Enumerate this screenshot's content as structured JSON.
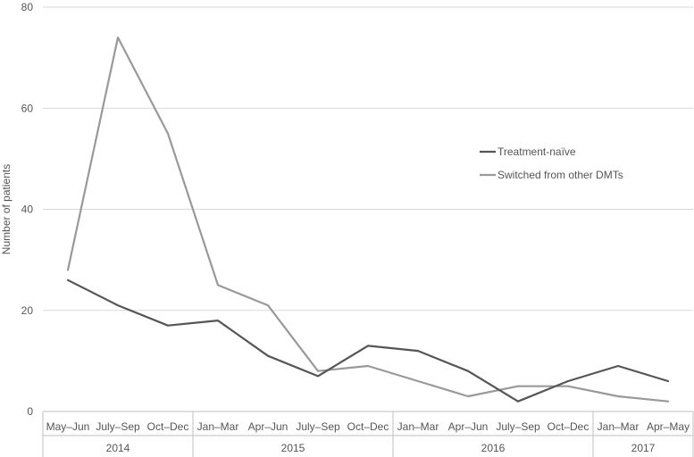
{
  "chart_data": {
    "type": "line",
    "ylabel": "Number of patients",
    "ylim": [
      0,
      80
    ],
    "yticks": [
      "0",
      "20",
      "40",
      "60",
      "80"
    ],
    "grid": "horizontal",
    "legend_position": "right",
    "categories": [
      "May–Jun",
      "July–Sep",
      "Oct–Dec",
      "Jan–Mar",
      "Apr–Jun",
      "July–Sep",
      "Oct–Dec",
      "Jan–Mar",
      "Apr–Jun",
      "July–Sep",
      "Oct–Dec",
      "Jan–Mar",
      "Apr–May"
    ],
    "year_groups": [
      {
        "label": "2014",
        "count": 3
      },
      {
        "label": "2015",
        "count": 4
      },
      {
        "label": "2016",
        "count": 4
      },
      {
        "label": "2017",
        "count": 2
      }
    ],
    "series": [
      {
        "name": "Treatment-naïve",
        "color": "#555555",
        "values": [
          26,
          21,
          17,
          18,
          11,
          7,
          13,
          12,
          8,
          2,
          6,
          9,
          6
        ]
      },
      {
        "name": "Switched from other DMTs",
        "color": "#999999",
        "values": [
          28,
          74,
          55,
          25,
          21,
          8,
          9,
          6,
          3,
          5,
          5,
          3,
          2
        ]
      }
    ]
  }
}
